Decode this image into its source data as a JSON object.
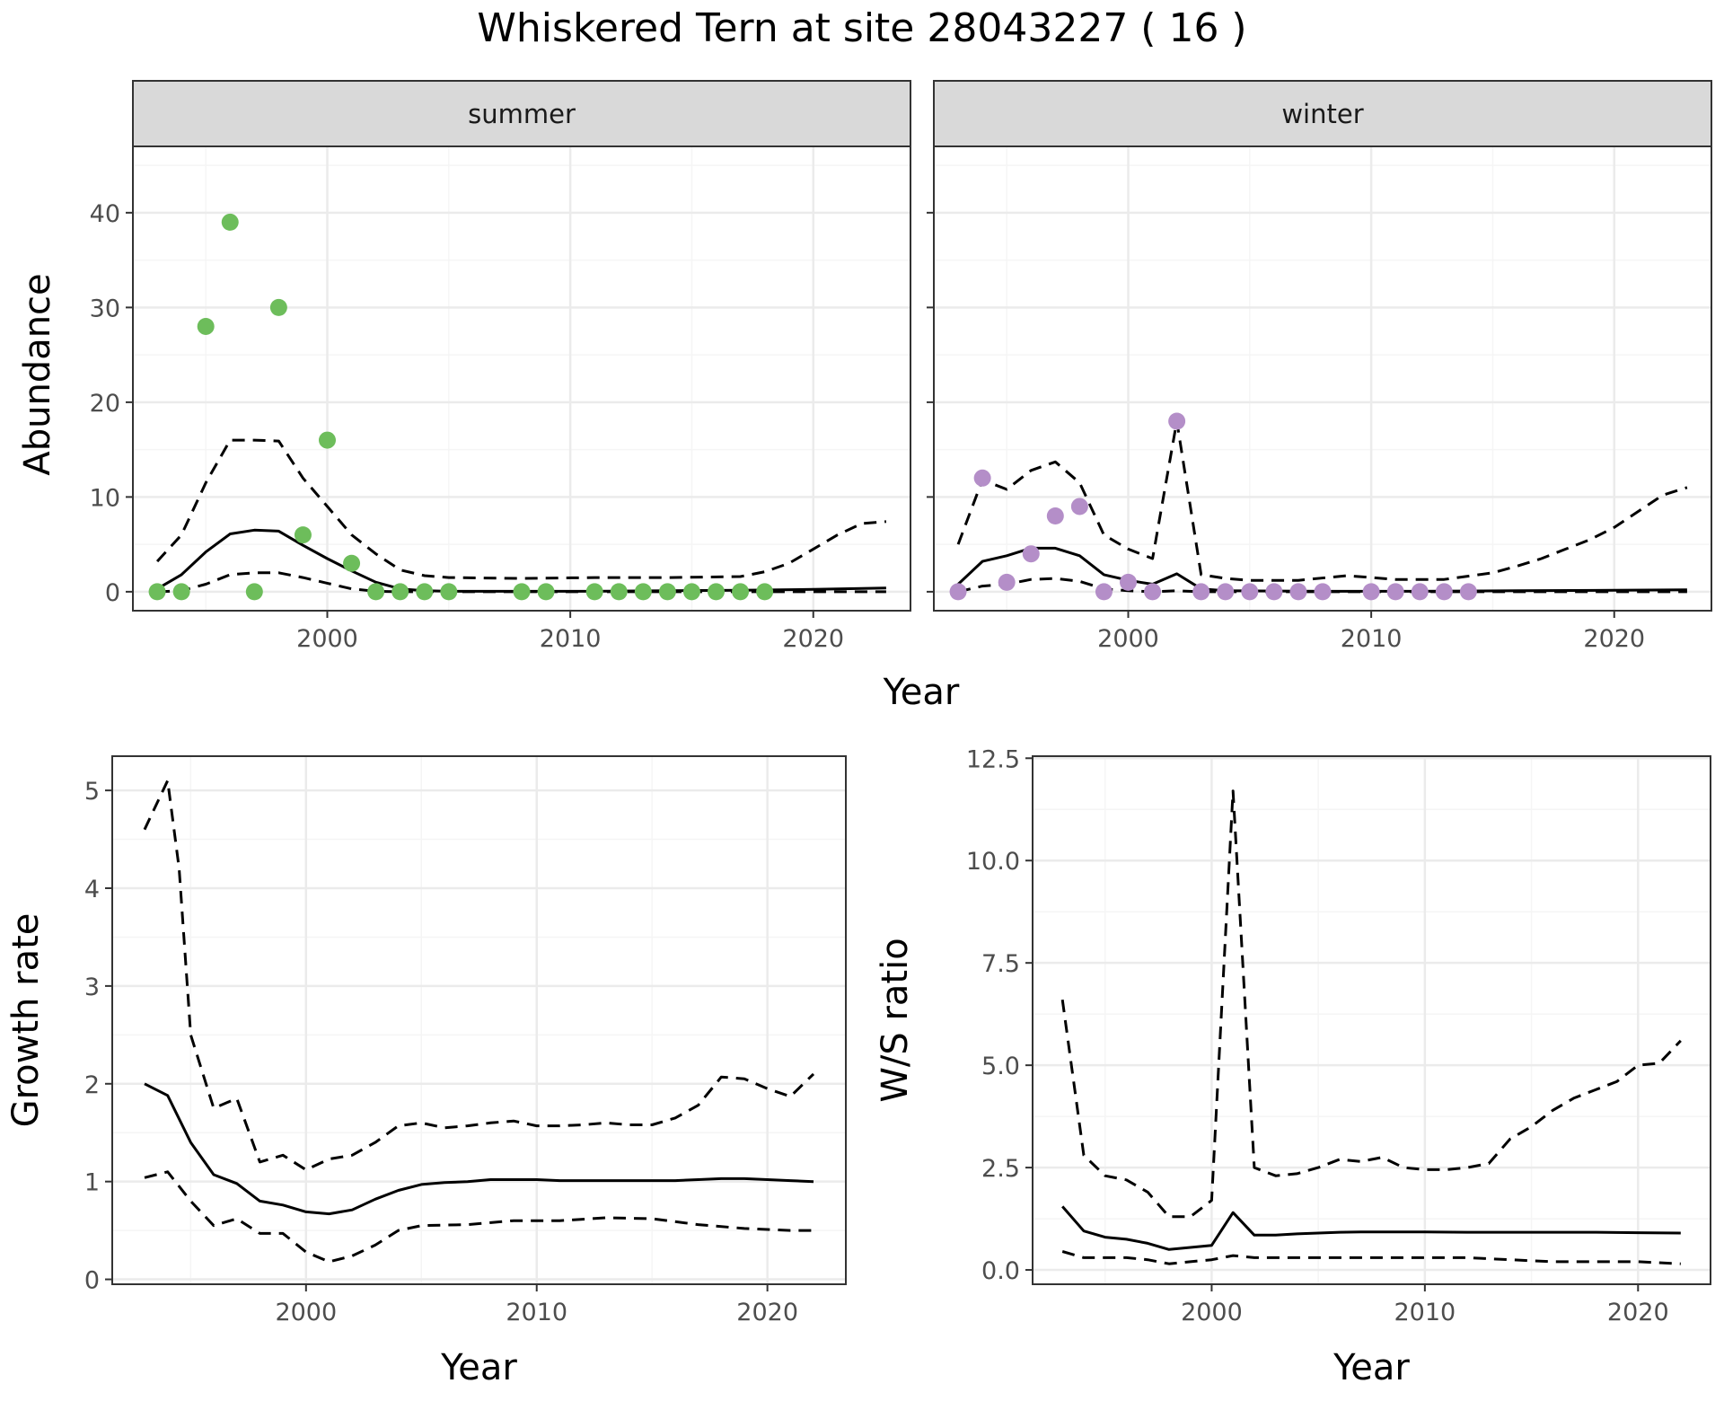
{
  "title": "Whiskered Tern at site 28043227 ( 16 )",
  "colors": {
    "summer": "#6dbd5b",
    "winter": "#b48ec8",
    "line": "#000000",
    "grid_major": "#ebebeb",
    "grid_minor": "#f5f5f5",
    "strip_bg": "#d9d9d9",
    "panel_border": "#333333"
  },
  "chart_data": [
    {
      "id": "summer",
      "type": "scatter",
      "strip": "summer",
      "xlabel": "Year",
      "ylabel": "Abundance",
      "xlim": [
        1992,
        2024
      ],
      "ylim": [
        -2,
        47
      ],
      "xticks": [
        2000,
        2010,
        2020
      ],
      "yticks": [
        0,
        10,
        20,
        30,
        40
      ],
      "grid": true,
      "point_color": "#6dbd5b",
      "points": {
        "x": [
          1993,
          1994,
          1995,
          1996,
          1997,
          1998,
          1999,
          2000,
          2001,
          2002,
          2003,
          2004,
          2005,
          2008,
          2009,
          2011,
          2012,
          2013,
          2014,
          2015,
          2016,
          2017,
          2018
        ],
        "y": [
          0,
          0,
          28,
          39,
          0,
          30,
          6,
          16,
          3,
          0,
          0,
          0,
          0,
          0,
          0,
          0,
          0,
          0,
          0,
          0,
          0,
          0,
          0
        ]
      },
      "lines": [
        {
          "style": "solid",
          "x": [
            1993,
            1994,
            1995,
            1996,
            1997,
            1998,
            1999,
            2000,
            2001,
            2002,
            2003,
            2004,
            2005,
            2008,
            2011,
            2014,
            2017,
            2020,
            2023
          ],
          "y": [
            0.3,
            1.8,
            4.2,
            6.1,
            6.5,
            6.4,
            4.9,
            3.5,
            2.2,
            1.0,
            0.3,
            0.1,
            0.05,
            0.05,
            0.05,
            0.1,
            0.15,
            0.25,
            0.4
          ]
        },
        {
          "style": "dashed",
          "x": [
            1993,
            1994,
            1995,
            1996,
            1997,
            1998,
            1999,
            2000,
            2001,
            2002,
            2003,
            2004,
            2005,
            2008,
            2011,
            2014,
            2017,
            2018,
            2019,
            2020,
            2021,
            2022,
            2023
          ],
          "y": [
            3.2,
            6.0,
            11.5,
            16.0,
            16.0,
            15.9,
            12.0,
            9.0,
            6.0,
            4.0,
            2.3,
            1.7,
            1.5,
            1.4,
            1.5,
            1.5,
            1.6,
            2.1,
            3.0,
            4.5,
            6.0,
            7.2,
            7.4
          ]
        },
        {
          "style": "dashed",
          "x": [
            1993,
            1994,
            1995,
            1996,
            1997,
            1998,
            1999,
            2000,
            2001,
            2002,
            2003,
            2005,
            2010,
            2015,
            2020,
            2023
          ],
          "y": [
            0,
            0.1,
            0.8,
            1.8,
            2.0,
            2.0,
            1.5,
            0.9,
            0.3,
            0.05,
            0,
            0,
            0,
            0,
            0,
            0
          ]
        }
      ]
    },
    {
      "id": "winter",
      "type": "scatter",
      "strip": "winter",
      "xlabel": "Year",
      "ylabel": "Abundance",
      "xlim": [
        1992,
        2024
      ],
      "ylim": [
        -2,
        47
      ],
      "xticks": [
        2000,
        2010,
        2020
      ],
      "yticks": [
        0,
        10,
        20,
        30,
        40
      ],
      "grid": true,
      "point_color": "#b48ec8",
      "points": {
        "x": [
          1993,
          1994,
          1995,
          1996,
          1997,
          1998,
          1999,
          2000,
          2001,
          2002,
          2003,
          2004,
          2005,
          2006,
          2007,
          2008,
          2010,
          2011,
          2012,
          2013,
          2014
        ],
        "y": [
          0,
          12,
          1,
          4,
          8,
          9,
          0,
          1,
          0,
          18,
          0,
          0,
          0,
          0,
          0,
          0,
          0,
          0,
          0,
          0,
          0
        ]
      },
      "lines": [
        {
          "style": "solid",
          "x": [
            1993,
            1994,
            1995,
            1996,
            1997,
            1998,
            1999,
            2000,
            2001,
            2002,
            2003,
            2004,
            2008,
            2012,
            2016,
            2020,
            2023
          ],
          "y": [
            0.8,
            3.2,
            3.8,
            4.6,
            4.6,
            3.8,
            1.8,
            1.2,
            0.8,
            1.9,
            0.3,
            0.1,
            0.05,
            0.05,
            0.1,
            0.15,
            0.2
          ]
        },
        {
          "style": "dashed",
          "x": [
            1993,
            1994,
            1995,
            1996,
            1997,
            1998,
            1999,
            2000,
            2001,
            2002,
            2003,
            2004,
            2005,
            2007,
            2009,
            2011,
            2013,
            2015,
            2016,
            2017,
            2018,
            2019,
            2020,
            2021,
            2022,
            2023
          ],
          "y": [
            5.0,
            11.8,
            10.8,
            12.8,
            13.7,
            11.5,
            6.0,
            4.5,
            3.5,
            18.0,
            1.8,
            1.4,
            1.2,
            1.2,
            1.7,
            1.3,
            1.3,
            2.0,
            2.7,
            3.5,
            4.5,
            5.5,
            6.8,
            8.5,
            10.2,
            11.0
          ]
        },
        {
          "style": "dashed",
          "x": [
            1993,
            1994,
            1995,
            1996,
            1997,
            1998,
            1999,
            2000,
            2001,
            2002,
            2003,
            2005,
            2010,
            2015,
            2020,
            2023
          ],
          "y": [
            0,
            0.6,
            0.8,
            1.3,
            1.4,
            1.1,
            0.3,
            0.1,
            0,
            0.1,
            0,
            0,
            0,
            0,
            0,
            0
          ]
        }
      ]
    },
    {
      "id": "growth",
      "type": "line",
      "xlabel": "Year",
      "ylabel": "Growth rate",
      "xlim": [
        1991.6,
        2023.4
      ],
      "ylim": [
        -0.05,
        5.35
      ],
      "xticks": [
        2000,
        2010,
        2020
      ],
      "yticks": [
        0,
        1,
        2,
        3,
        4,
        5
      ],
      "grid": true,
      "lines": [
        {
          "style": "solid",
          "x": [
            1993,
            1994,
            1995,
            1996,
            1997,
            1998,
            1999,
            2000,
            2001,
            2002,
            2003,
            2004,
            2005,
            2006,
            2007,
            2008,
            2009,
            2010,
            2011,
            2012,
            2013,
            2014,
            2015,
            2016,
            2017,
            2018,
            2019,
            2020,
            2021,
            2022
          ],
          "y": [
            2.0,
            1.88,
            1.4,
            1.07,
            0.98,
            0.8,
            0.76,
            0.69,
            0.67,
            0.71,
            0.82,
            0.91,
            0.97,
            0.99,
            1.0,
            1.02,
            1.02,
            1.02,
            1.01,
            1.01,
            1.01,
            1.01,
            1.01,
            1.01,
            1.02,
            1.03,
            1.03,
            1.02,
            1.01,
            1.0
          ]
        },
        {
          "style": "dashed",
          "x": [
            1993,
            1994,
            1994.5,
            1995,
            1996,
            1997,
            1998,
            1999,
            2000,
            2001,
            2002,
            2003,
            2004,
            2005,
            2006,
            2007,
            2008,
            2009,
            2010,
            2011,
            2012,
            2013,
            2014,
            2015,
            2016,
            2017,
            2018,
            2019,
            2020,
            2021,
            2022
          ],
          "y": [
            4.6,
            5.1,
            4.2,
            2.5,
            1.75,
            1.85,
            1.2,
            1.27,
            1.12,
            1.23,
            1.27,
            1.4,
            1.57,
            1.6,
            1.55,
            1.57,
            1.6,
            1.62,
            1.57,
            1.57,
            1.58,
            1.6,
            1.58,
            1.58,
            1.65,
            1.78,
            2.07,
            2.05,
            1.95,
            1.87,
            2.1
          ]
        },
        {
          "style": "dashed",
          "x": [
            1993,
            1994,
            1995,
            1996,
            1997,
            1998,
            1999,
            2000,
            2001,
            2002,
            2003,
            2004,
            2005,
            2007,
            2009,
            2011,
            2013,
            2015,
            2017,
            2019,
            2021,
            2022
          ],
          "y": [
            1.04,
            1.1,
            0.8,
            0.55,
            0.62,
            0.47,
            0.47,
            0.28,
            0.18,
            0.24,
            0.35,
            0.5,
            0.55,
            0.56,
            0.6,
            0.6,
            0.63,
            0.62,
            0.56,
            0.52,
            0.5,
            0.5
          ]
        }
      ]
    },
    {
      "id": "ratio",
      "type": "line",
      "xlabel": "Year",
      "ylabel": "W/S ratio",
      "xlim": [
        1991.6,
        2023.4
      ],
      "ylim": [
        -0.35,
        12.55
      ],
      "xticks": [
        2000,
        2010,
        2020
      ],
      "yticks": [
        0.0,
        2.5,
        5.0,
        7.5,
        10.0,
        12.5
      ],
      "ytick_labels": [
        "0.0",
        "2.5",
        "5.0",
        "7.5",
        "10.0",
        "12.5"
      ],
      "grid": true,
      "lines": [
        {
          "style": "solid",
          "x": [
            1993,
            1994,
            1995,
            1996,
            1997,
            1998,
            1999,
            2000,
            2001,
            2002,
            2003,
            2004,
            2005,
            2006,
            2007,
            2008,
            2009,
            2010,
            2012,
            2014,
            2016,
            2018,
            2020,
            2022
          ],
          "y": [
            1.55,
            0.95,
            0.8,
            0.75,
            0.65,
            0.5,
            0.55,
            0.6,
            1.4,
            0.85,
            0.85,
            0.88,
            0.9,
            0.92,
            0.93,
            0.93,
            0.93,
            0.93,
            0.92,
            0.92,
            0.92,
            0.92,
            0.91,
            0.9
          ]
        },
        {
          "style": "dashed",
          "x": [
            1993,
            1994,
            1995,
            1996,
            1997,
            1998,
            1999,
            2000,
            2001,
            2002,
            2003,
            2004,
            2005,
            2006,
            2007,
            2008,
            2009,
            2010,
            2011,
            2012,
            2013,
            2014,
            2015,
            2016,
            2017,
            2018,
            2019,
            2020,
            2021,
            2022
          ],
          "y": [
            6.6,
            2.8,
            2.3,
            2.2,
            1.9,
            1.3,
            1.3,
            1.7,
            11.7,
            2.5,
            2.3,
            2.35,
            2.5,
            2.7,
            2.65,
            2.75,
            2.5,
            2.45,
            2.45,
            2.5,
            2.6,
            3.2,
            3.5,
            3.9,
            4.2,
            4.4,
            4.6,
            5.0,
            5.05,
            5.6
          ]
        },
        {
          "style": "dashed",
          "x": [
            1993,
            1994,
            1995,
            1996,
            1997,
            1998,
            1999,
            2000,
            2001,
            2002,
            2004,
            2006,
            2008,
            2010,
            2012,
            2014,
            2016,
            2018,
            2020,
            2022
          ],
          "y": [
            0.45,
            0.3,
            0.3,
            0.3,
            0.25,
            0.15,
            0.2,
            0.25,
            0.35,
            0.3,
            0.3,
            0.3,
            0.3,
            0.3,
            0.3,
            0.25,
            0.2,
            0.2,
            0.2,
            0.15
          ]
        }
      ]
    }
  ]
}
